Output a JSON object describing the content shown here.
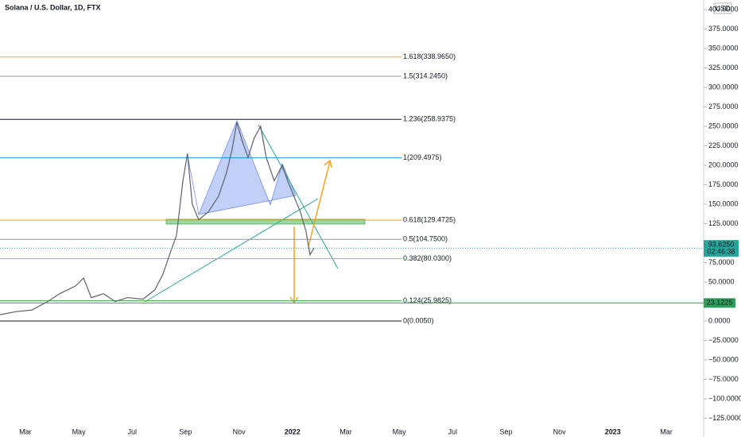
{
  "chart_data": {
    "type": "line",
    "title": "Solana / U.S. Dollar, 1D, FTX",
    "currency": "USD",
    "series": [
      {
        "name": "SOL/USD",
        "color": "#5d606b",
        "x": [
          1.05,
          1.65,
          2.24,
          2.84,
          3.28,
          3.88,
          4.18,
          4.47,
          4.92,
          5.37,
          5.81,
          6.41,
          6.85,
          7.15,
          7.45,
          7.66,
          7.9,
          8.07,
          8.25,
          8.49,
          8.85,
          9.23,
          9.53,
          9.74,
          9.92,
          10.13,
          10.34,
          10.57,
          10.81,
          11.02,
          11.32,
          11.62,
          11.82,
          12.06,
          12.3,
          12.51,
          12.66,
          12.81
        ],
        "values": [
          8,
          12,
          14,
          25,
          35,
          45,
          55,
          30,
          35,
          25,
          30,
          28,
          40,
          60,
          90,
          110,
          180,
          215,
          150,
          130,
          140,
          160,
          190,
          220,
          255,
          230,
          210,
          235,
          250,
          210,
          180,
          200,
          180,
          160,
          140,
          115,
          85,
          93.625
        ]
      }
    ],
    "xlim": [
      1.05,
      27.4
    ],
    "ylim": [
      -138.8,
      412.2
    ],
    "xticks": [
      {
        "value": 2,
        "label": "Mar"
      },
      {
        "value": 4,
        "label": "May"
      },
      {
        "value": 6,
        "label": "Jul"
      },
      {
        "value": 8,
        "label": "Sep"
      },
      {
        "value": 10,
        "label": "Nov"
      },
      {
        "value": 12,
        "label": "2022"
      },
      {
        "value": 14,
        "label": "Mar"
      },
      {
        "value": 16,
        "label": "May"
      },
      {
        "value": 18,
        "label": "Jul"
      },
      {
        "value": 20,
        "label": "Sep"
      },
      {
        "value": 22,
        "label": "Nov"
      },
      {
        "value": 24,
        "label": "2023"
      },
      {
        "value": 26,
        "label": "Mar"
      }
    ],
    "yticks": [
      {
        "value": 400,
        "label": "400.0000"
      },
      {
        "value": 375,
        "label": "375.0000"
      },
      {
        "value": 350,
        "label": "350.0000"
      },
      {
        "value": 325,
        "label": "325.0000"
      },
      {
        "value": 300,
        "label": "300.0000"
      },
      {
        "value": 275,
        "label": "275.0000"
      },
      {
        "value": 250,
        "label": "250.0000"
      },
      {
        "value": 225,
        "label": "225.0000"
      },
      {
        "value": 200,
        "label": "200.0000"
      },
      {
        "value": 175,
        "label": "175.0000"
      },
      {
        "value": 150,
        "label": "150.0000"
      },
      {
        "value": 125,
        "label": "125.0000"
      },
      {
        "value": 100,
        "label": "100.0000"
      },
      {
        "value": 75,
        "label": "75.0000"
      },
      {
        "value": 50,
        "label": "50.0000"
      },
      {
        "value": 25,
        "label": "25.0000"
      },
      {
        "value": 0,
        "label": "0.0000"
      },
      {
        "value": -25,
        "label": "−25.0000"
      },
      {
        "value": -50,
        "label": "−50.0000"
      },
      {
        "value": -75,
        "label": "−75.0000"
      },
      {
        "value": -100,
        "label": "−100.0000"
      },
      {
        "value": -125,
        "label": "−125.0000"
      }
    ],
    "fib_levels": [
      {
        "value": 338.965,
        "label": "1.618(338.9650)",
        "color": "#f7a21b"
      },
      {
        "value": 314.245,
        "label": "1.5(314.2450)",
        "color": "#9598a1"
      },
      {
        "value": 258.9375,
        "label": "1.236(258.9375)",
        "color": "#131722"
      },
      {
        "value": 209.4975,
        "label": "1(209.4975)",
        "color": "#2196f3"
      },
      {
        "value": 129.4725,
        "label": "0.618(129.4725)",
        "color": "#f7a21b"
      },
      {
        "value": 104.75,
        "label": "0.5(104.7500)",
        "color": "#9598a1"
      },
      {
        "value": 80.03,
        "label": "0.382(80.0300)",
        "color": "#f7a21b"
      },
      {
        "value": 25.9825,
        "label": "0.124(25.9825)",
        "color": "#4caf50"
      },
      {
        "value": 0.005,
        "label": "0(0.0050)",
        "color": "#131722"
      }
    ],
    "level_line": {
      "value": 23.1225,
      "label": "23.1225",
      "color": "#2e9e5b"
    },
    "last_price": {
      "value": 93.625,
      "label": "93.6250",
      "countdown": "02:46:38",
      "color": "#26a69a"
    }
  }
}
